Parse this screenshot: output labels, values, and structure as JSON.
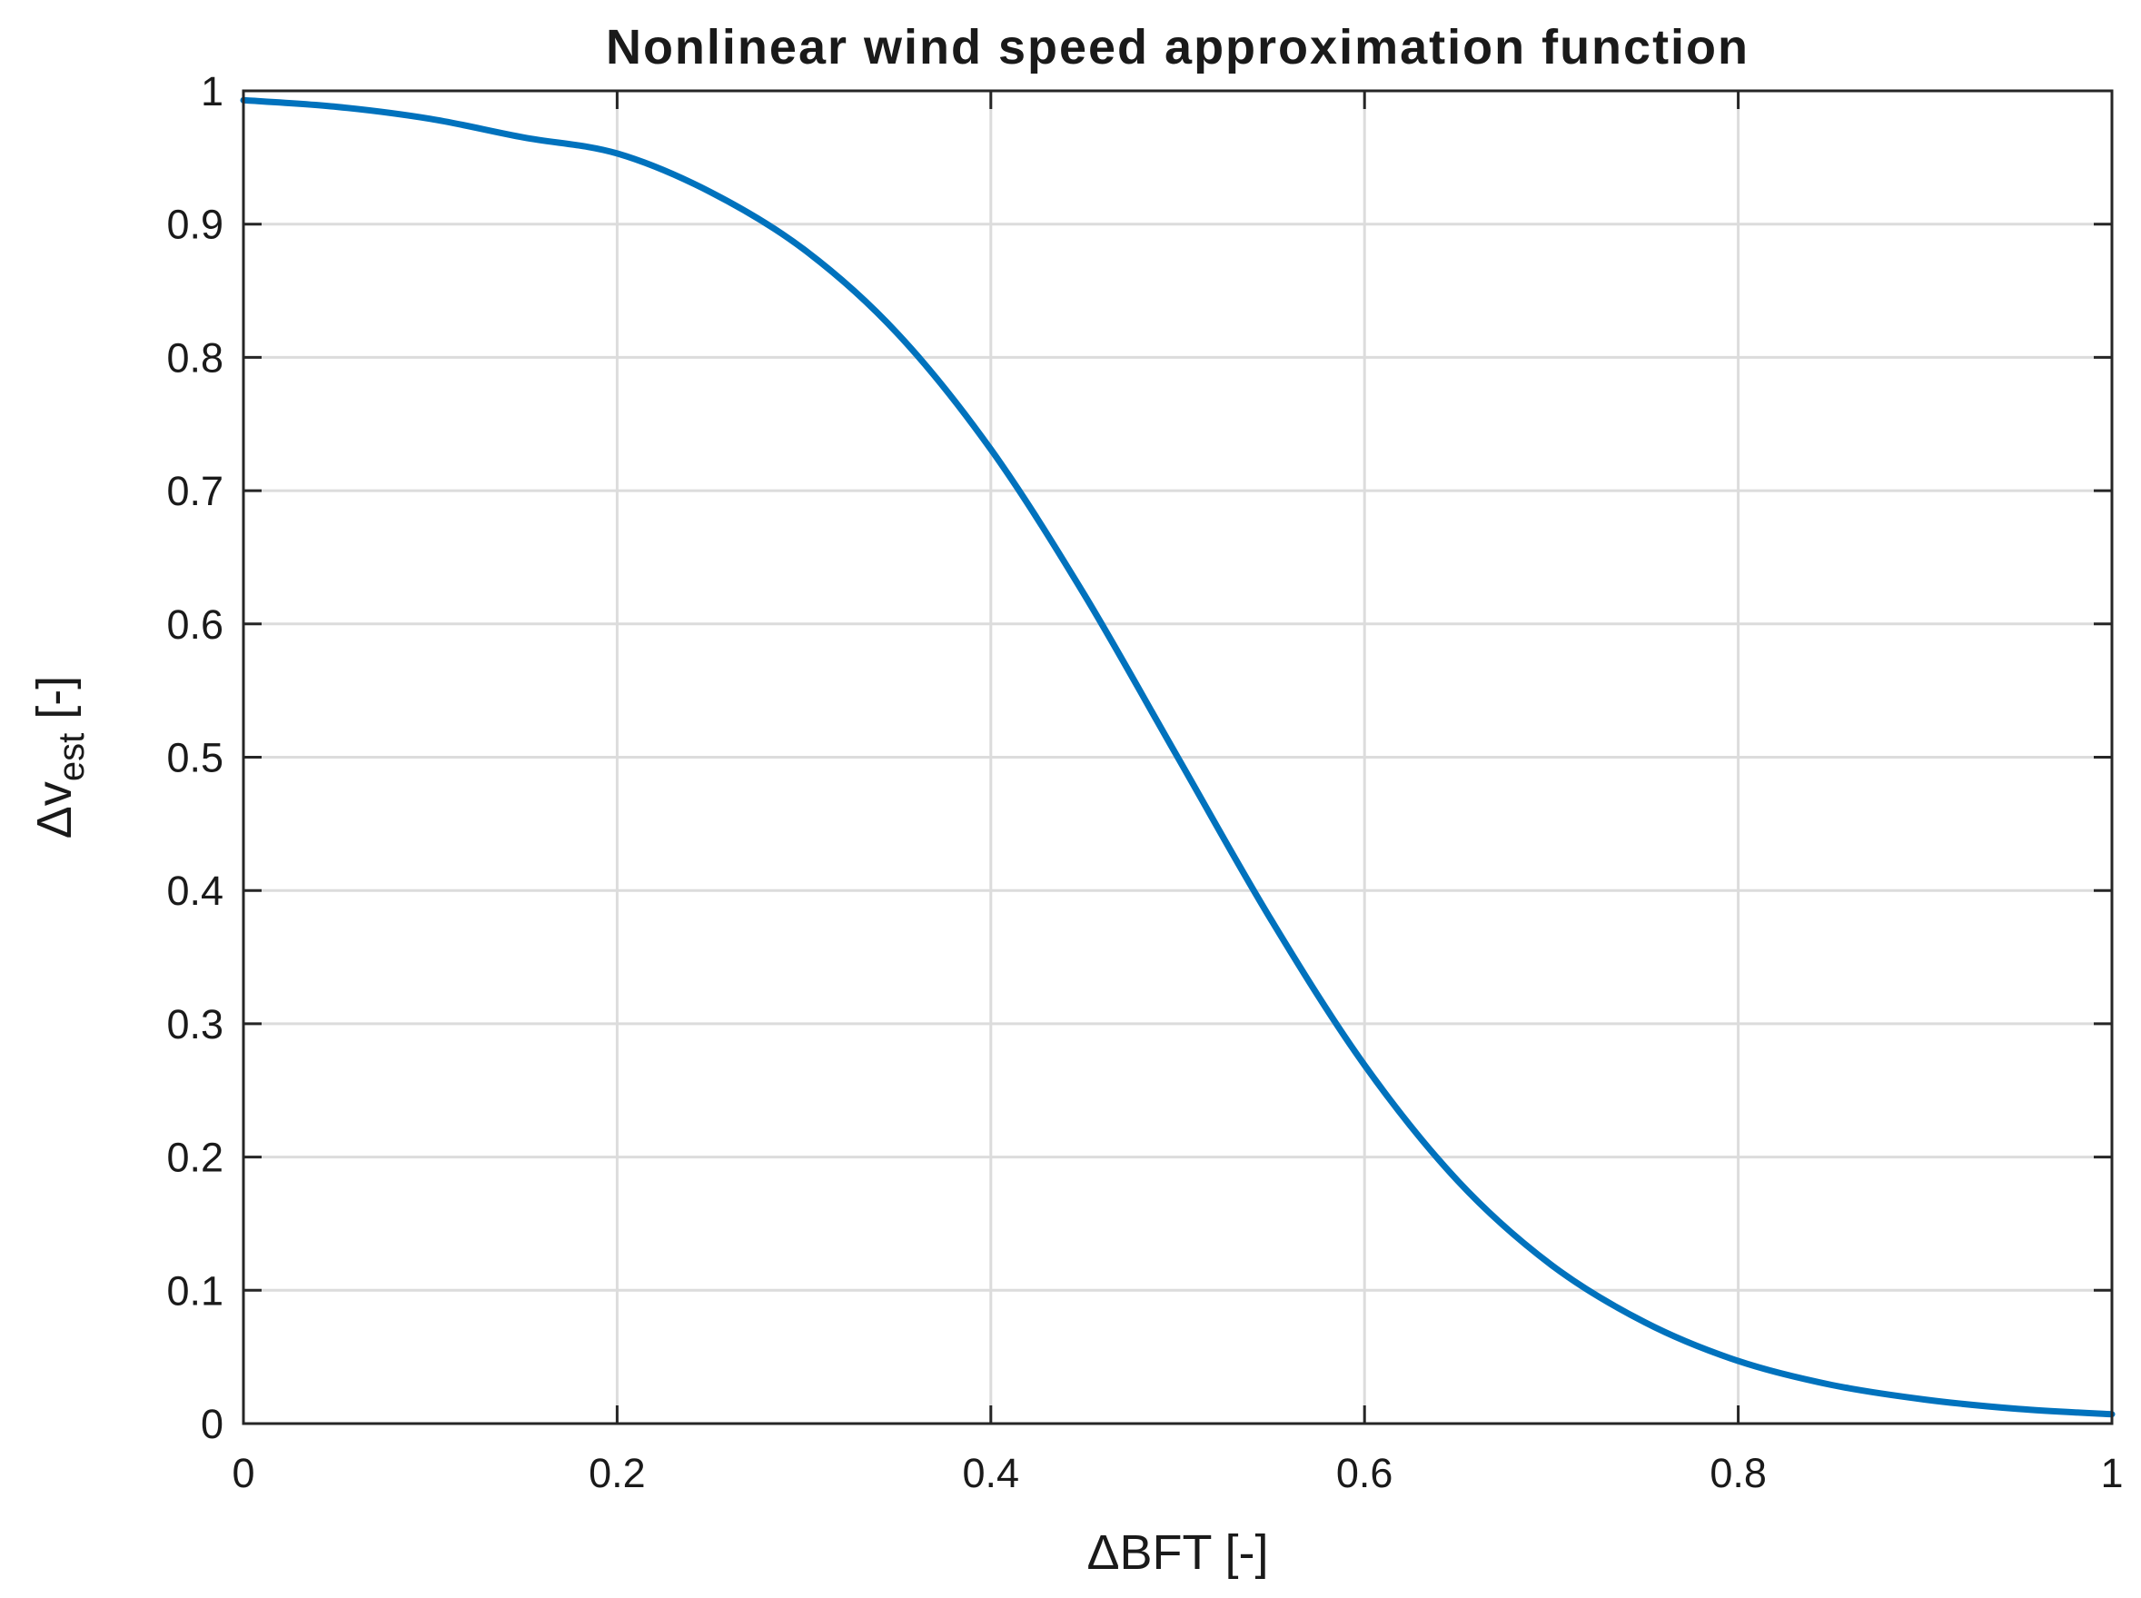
{
  "chart_data": {
    "type": "line",
    "title": "Nonlinear wind speed approximation function",
    "xlabel": "ΔBFT [-]",
    "ylabel": {
      "main": "Δv",
      "subscript": "est",
      "unit": "[-]"
    },
    "xlim": [
      0,
      1
    ],
    "ylim": [
      0,
      1
    ],
    "grid": true,
    "xticks": [
      0,
      0.2,
      0.4,
      0.6,
      0.8,
      1
    ],
    "xtick_labels": [
      "0",
      "0.2",
      "0.4",
      "0.6",
      "0.8",
      "1"
    ],
    "yticks": [
      0,
      0.1,
      0.2,
      0.3,
      0.4,
      0.5,
      0.6,
      0.7,
      0.8,
      0.9,
      1
    ],
    "ytick_labels": [
      "0",
      "0.1",
      "0.2",
      "0.3",
      "0.4",
      "0.5",
      "0.6",
      "0.7",
      "0.8",
      "0.9",
      "1"
    ],
    "line_color": "#0072BD",
    "series": [
      {
        "x": [
          0,
          0.05,
          0.1,
          0.15,
          0.2,
          0.25,
          0.3,
          0.35,
          0.4,
          0.45,
          0.5,
          0.55,
          0.6,
          0.65,
          0.7,
          0.75,
          0.8,
          0.85,
          0.9,
          0.95,
          1
        ],
        "y": [
          0.993,
          0.988,
          0.979,
          0.965,
          0.953,
          0.924,
          0.881,
          0.818,
          0.731,
          0.622,
          0.5,
          0.378,
          0.269,
          0.182,
          0.119,
          0.076,
          0.047,
          0.029,
          0.018,
          0.011,
          0.007
        ]
      }
    ]
  }
}
